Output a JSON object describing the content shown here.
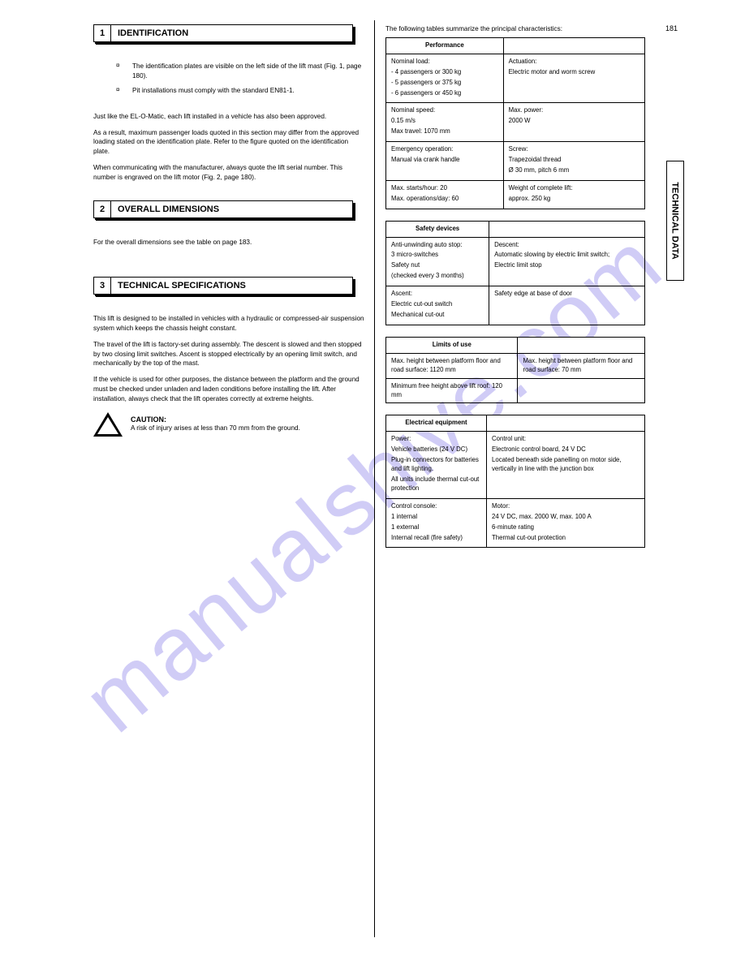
{
  "page_number": "181",
  "side_tab": "TECHNICAL DATA",
  "watermark": "manualshive.com",
  "left": {
    "sec1": {
      "num": "1",
      "title": "IDENTIFICATION",
      "bullets": [
        "The identification plates are visible on the left  side of the lift mast (Fig. 1, page 180).",
        "Pit installations must comply with the standard  EN81-1."
      ],
      "paras": [
        "Just like the EL-O-Matic, each lift installed in a  vehicle has also been approved.",
        "As a result, maximum passenger loads quoted  in this section may differ from the approved  loading stated on the identification plate. Refer  to the figure quoted on the identification plate.",
        "When communicating with the manufacturer,  always quote the lift serial number. This number  is engraved on the lift motor (Fig. 2, page 180)."
      ]
    },
    "sec2": {
      "num": "2",
      "title": "OVERALL DIMENSIONS",
      "para": "For the overall dimensions see the table on  page 183."
    },
    "sec3": {
      "num": "3",
      "title": "TECHNICAL SPECIFICATIONS",
      "para1": "This lift is designed to be installed in vehicles  with a hydraulic or compressed-air suspension  system which keeps the chassis height  constant.",
      "para2": "The travel of the lift is factory-set during  assembly. The descent is slowed and then  stopped by two closing limit switches.  Ascent is stopped electrically by an opening  limit switch, and mechanically by the top of the  mast.",
      "para3": "If the vehicle is used for other purposes, the  distance between the platform and the ground  must be checked under unladen and laden  conditions before installing the lift. After  installation, always check that the lift operates  correctly at extreme heights.",
      "warn_label": "CAUTION:",
      "warn_text": "A risk of injury arises at less than  70 mm from the ground."
    }
  },
  "right": {
    "t1": {
      "intro": "The following tables summarize the principal  characteristics:",
      "head": [
        "Performance",
        ""
      ],
      "rows": [
        [
          "Nominal load:\n- 4 passengers or 300 kg\n- 5 passengers or 375 kg\n- 6 passengers or 450 kg",
          "Actuation:\nElectric motor and worm  screw"
        ],
        [
          "Nominal speed:\n0.15 m/s\nMax travel: 1070 mm",
          "Max. power:\n2000 W"
        ],
        [
          "Emergency operation:\nManual via crank handle",
          "Screw:\nTrapezoidal thread\nØ 30 mm, pitch 6 mm"
        ],
        [
          "Max. starts/hour: 20\nMax. operations/day: 60",
          "Weight of complete lift:\napprox. 250 kg"
        ]
      ]
    },
    "t2": {
      "head": [
        "Safety devices",
        ""
      ],
      "rows": [
        [
          "Anti-unwinding auto stop:\n3 micro-switches\nSafety nut\n(checked every 3 months)",
          "Descent:\nAutomatic slowing by  electric limit switch;\nElectric limit stop"
        ],
        [
          "Ascent:\nElectric cut-out switch\nMechanical cut-out",
          "Safety edge at base of  door"
        ]
      ]
    },
    "t3": {
      "head": [
        "Limits of use",
        ""
      ],
      "rows": [
        [
          "Max. height between  platform floor and road  surface: 1120 mm",
          "Max. height between  platform floor and road  surface: 70 mm"
        ],
        [
          "Minimum free height above  lift roof: 120 mm",
          ""
        ]
      ]
    },
    "t4": {
      "head": [
        "Electrical equipment",
        ""
      ],
      "rows": [
        [
          "Power:\nVehicle batteries (24 V DC)\nPlug-in connectors for  batteries and lift lighting.\nAll units include thermal  cut-out protection",
          "Control unit:\nElectronic control board,  24 V DC\nLocated beneath side  panelling on motor side,  vertically in line with the  junction box"
        ],
        [
          "Control console:\n1 internal\n1 external\nInternal recall (fire safety)",
          "Motor:\n24 V DC, max. 2000 W,  max. 100 A\n6-minute rating\nThermal cut-out protection"
        ]
      ]
    }
  }
}
